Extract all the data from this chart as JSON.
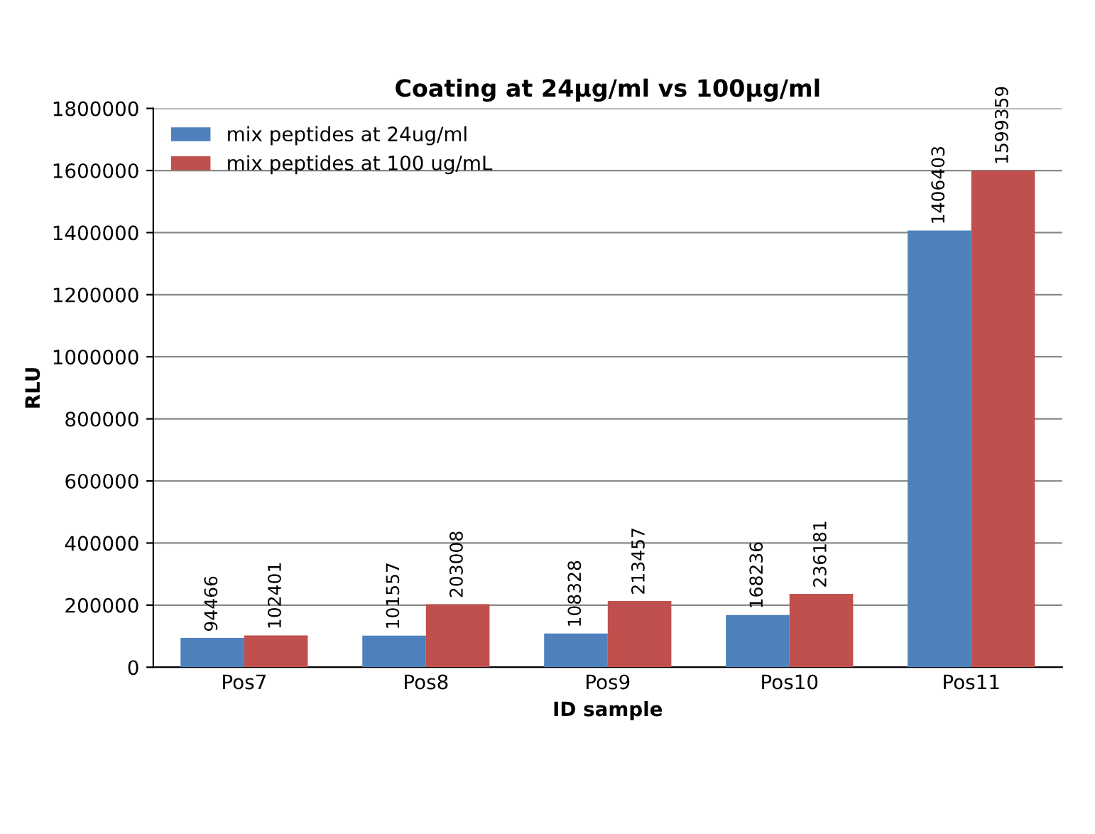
{
  "chart_data": {
    "type": "bar",
    "title": "Coating at 24µg/ml vs 100µg/ml",
    "xlabel": "ID sample",
    "ylabel": "RLU",
    "categories": [
      "Pos7",
      "Pos8",
      "Pos9",
      "Pos10",
      "Pos11"
    ],
    "series": [
      {
        "name": "mix peptides at 24ug/ml",
        "color": "#4f81bd",
        "values": [
          94466,
          101557,
          108328,
          168236,
          1406403
        ]
      },
      {
        "name": "mix peptides at 100 ug/mL",
        "color": "#c0504d",
        "values": [
          102401,
          203008,
          213457,
          236181,
          1599359
        ]
      }
    ],
    "ylim": [
      0,
      1800000
    ],
    "yticks": [
      0,
      200000,
      400000,
      600000,
      800000,
      1000000,
      1200000,
      1400000,
      1600000,
      1800000
    ],
    "grid": "y",
    "legend": "top left",
    "data_labels": true
  }
}
